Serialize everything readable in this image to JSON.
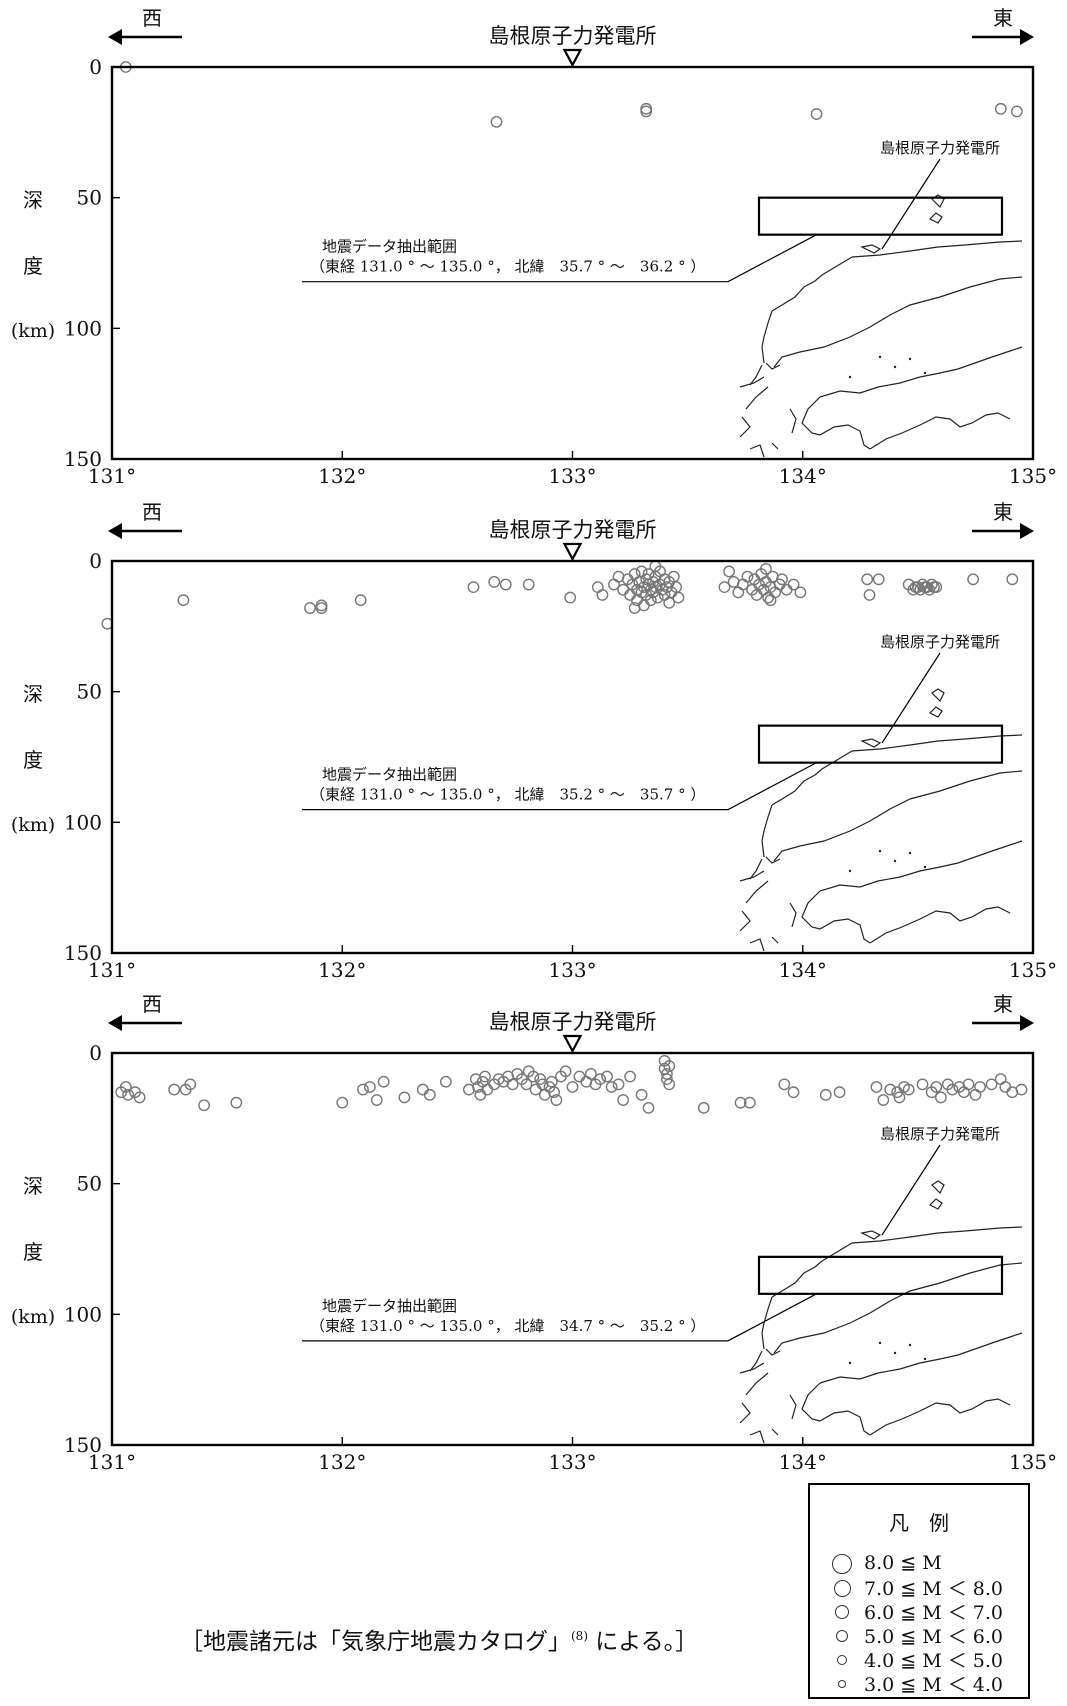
{
  "figure": {
    "direction_west": "西",
    "direction_east": "東",
    "site_label": "島根原子力発電所",
    "inset_site_label": "島根原子力発電所",
    "depth_label_chars": [
      "深",
      "度"
    ],
    "depth_unit": "(km)",
    "source_note_parts": [
      "［地震諸元は「気象庁地震カタログ」",
      "(8)",
      " による。］"
    ]
  },
  "legend": {
    "title": "凡　例",
    "items": [
      {
        "label": "8.0 ≦ M"
      },
      {
        "label": "7.0 ≦ M ＜ 8.0"
      },
      {
        "label": "6.0 ≦ M ＜ 7.0"
      },
      {
        "label": "5.0 ≦ M ＜ 6.0"
      },
      {
        "label": "4.0 ≦ M ＜ 5.0"
      },
      {
        "label": "3.0 ≦ M ＜ 4.0"
      }
    ]
  },
  "chart_data": [
    {
      "type": "scatter",
      "xlabel": "",
      "ylabel": "深度 (km)",
      "xlim": [
        131,
        135
      ],
      "ylim": [
        0,
        150
      ],
      "y_inverted": true,
      "x_ticks": [
        "131°",
        "132°",
        "133°",
        "134°",
        "135°"
      ],
      "y_ticks": [
        "0",
        "50",
        "100",
        "150"
      ],
      "site_longitude": 133.0,
      "annotation": [
        "地震データ抽出範囲",
        "（東経 131.0 ° ～ 135.0 °， 北緯　35.7 ° ～　36.2 ° ）"
      ],
      "series": [
        {
          "points": [
            [
              131.06,
              0
            ],
            [
              132.67,
              21
            ],
            [
              133.32,
              16
            ],
            [
              133.32,
              17
            ],
            [
              134.06,
              18
            ],
            [
              134.86,
              16
            ],
            [
              134.93,
              17
            ]
          ]
        }
      ]
    },
    {
      "type": "scatter",
      "xlabel": "",
      "ylabel": "深度 (km)",
      "xlim": [
        131,
        135
      ],
      "ylim": [
        0,
        150
      ],
      "y_inverted": true,
      "x_ticks": [
        "131°",
        "132°",
        "133°",
        "134°",
        "135°"
      ],
      "y_ticks": [
        "0",
        "50",
        "100",
        "150"
      ],
      "site_longitude": 133.0,
      "annotation": [
        "地震データ抽出範囲",
        "（東経 131.0 ° ～ 135.0 °， 北緯　35.2 ° ～　35.7 ° ）"
      ],
      "series": [
        {
          "points": [
            [
              130.98,
              24
            ],
            [
              131.31,
              15
            ],
            [
              131.86,
              18
            ],
            [
              131.91,
              17
            ],
            [
              131.91,
              18
            ],
            [
              132.08,
              15
            ],
            [
              132.57,
              10
            ],
            [
              132.66,
              8
            ],
            [
              132.71,
              9
            ],
            [
              132.81,
              9
            ],
            [
              132.99,
              14
            ],
            [
              133.11,
              10
            ],
            [
              133.13,
              13
            ],
            [
              133.18,
              9
            ],
            [
              133.2,
              6
            ],
            [
              133.22,
              11
            ],
            [
              133.24,
              7
            ],
            [
              133.25,
              13
            ],
            [
              133.26,
              9
            ],
            [
              133.27,
              5
            ],
            [
              133.28,
              11
            ],
            [
              133.28,
              15
            ],
            [
              133.29,
              8
            ],
            [
              133.3,
              12
            ],
            [
              133.3,
              4
            ],
            [
              133.31,
              10
            ],
            [
              133.31,
              17
            ],
            [
              133.32,
              7
            ],
            [
              133.32,
              13
            ],
            [
              133.33,
              9
            ],
            [
              133.33,
              5
            ],
            [
              133.34,
              11
            ],
            [
              133.34,
              15
            ],
            [
              133.35,
              8
            ],
            [
              133.35,
              12
            ],
            [
              133.36,
              6
            ],
            [
              133.36,
              10
            ],
            [
              133.37,
              14
            ],
            [
              133.38,
              9
            ],
            [
              133.38,
              4
            ],
            [
              133.39,
              11
            ],
            [
              133.4,
              7
            ],
            [
              133.4,
              13
            ],
            [
              133.41,
              10
            ],
            [
              133.42,
              8
            ],
            [
              133.42,
              16
            ],
            [
              133.43,
              12
            ],
            [
              133.44,
              6
            ],
            [
              133.45,
              10
            ],
            [
              133.46,
              14
            ],
            [
              133.27,
              18
            ],
            [
              133.36,
              2
            ],
            [
              133.66,
              10
            ],
            [
              133.68,
              4
            ],
            [
              133.7,
              8
            ],
            [
              133.72,
              12
            ],
            [
              133.74,
              9
            ],
            [
              133.76,
              6
            ],
            [
              133.78,
              11
            ],
            [
              133.79,
              7
            ],
            [
              133.8,
              13
            ],
            [
              133.81,
              9
            ],
            [
              133.82,
              5
            ],
            [
              133.83,
              11
            ],
            [
              133.84,
              8
            ],
            [
              133.85,
              14
            ],
            [
              133.86,
              10
            ],
            [
              133.87,
              6
            ],
            [
              133.88,
              12
            ],
            [
              133.9,
              9
            ],
            [
              133.91,
              7
            ],
            [
              133.93,
              11
            ],
            [
              133.96,
              9
            ],
            [
              133.99,
              12
            ],
            [
              133.84,
              3
            ],
            [
              133.86,
              15
            ],
            [
              134.28,
              7
            ],
            [
              134.29,
              13
            ],
            [
              134.33,
              7
            ],
            [
              134.46,
              9
            ],
            [
              134.48,
              11
            ],
            [
              134.49,
              10
            ],
            [
              134.5,
              10
            ],
            [
              134.51,
              11
            ],
            [
              134.52,
              9
            ],
            [
              134.53,
              10
            ],
            [
              134.54,
              10
            ],
            [
              134.55,
              11
            ],
            [
              134.56,
              9
            ],
            [
              134.57,
              10
            ],
            [
              134.58,
              10
            ],
            [
              134.74,
              7
            ],
            [
              134.91,
              7
            ]
          ]
        }
      ]
    },
    {
      "type": "scatter",
      "xlabel": "",
      "ylabel": "深度 (km)",
      "xlim": [
        131,
        135
      ],
      "ylim": [
        0,
        150
      ],
      "y_inverted": true,
      "x_ticks": [
        "131°",
        "132°",
        "133°",
        "134°",
        "135°"
      ],
      "y_ticks": [
        "0",
        "50",
        "100",
        "150"
      ],
      "site_longitude": 133.0,
      "annotation": [
        "地震データ抽出範囲",
        "（東経 131.0 ° ～ 135.0 °， 北緯　34.7 ° ～　35.2 ° ）"
      ],
      "series": [
        {
          "points": [
            [
              131.04,
              15
            ],
            [
              131.06,
              13
            ],
            [
              131.07,
              16
            ],
            [
              131.1,
              15
            ],
            [
              131.12,
              17
            ],
            [
              131.27,
              14
            ],
            [
              131.32,
              14
            ],
            [
              131.34,
              12
            ],
            [
              131.4,
              20
            ],
            [
              131.54,
              19
            ],
            [
              132.0,
              19
            ],
            [
              132.09,
              14
            ],
            [
              132.12,
              13
            ],
            [
              132.15,
              18
            ],
            [
              132.18,
              11
            ],
            [
              132.27,
              17
            ],
            [
              132.35,
              14
            ],
            [
              132.38,
              16
            ],
            [
              132.45,
              11
            ],
            [
              132.55,
              14
            ],
            [
              132.58,
              10
            ],
            [
              132.59,
              13
            ],
            [
              132.6,
              16
            ],
            [
              132.61,
              11
            ],
            [
              132.62,
              9
            ],
            [
              132.63,
              14
            ],
            [
              132.66,
              12
            ],
            [
              132.68,
              10
            ],
            [
              132.7,
              11
            ],
            [
              132.72,
              9
            ],
            [
              132.74,
              12
            ],
            [
              132.76,
              8
            ],
            [
              132.78,
              10
            ],
            [
              132.8,
              12
            ],
            [
              132.81,
              7
            ],
            [
              132.83,
              9
            ],
            [
              132.84,
              14
            ],
            [
              132.86,
              10
            ],
            [
              132.87,
              12
            ],
            [
              132.88,
              16
            ],
            [
              132.9,
              13
            ],
            [
              132.91,
              11
            ],
            [
              132.92,
              15
            ],
            [
              132.93,
              18
            ],
            [
              132.95,
              9
            ],
            [
              132.97,
              7
            ],
            [
              133.0,
              13
            ],
            [
              133.03,
              9
            ],
            [
              133.06,
              11
            ],
            [
              133.08,
              8
            ],
            [
              133.1,
              12
            ],
            [
              133.12,
              10
            ],
            [
              133.15,
              9
            ],
            [
              133.17,
              13
            ],
            [
              133.2,
              12
            ],
            [
              133.22,
              18
            ],
            [
              133.25,
              9
            ],
            [
              133.3,
              16
            ],
            [
              133.33,
              21
            ],
            [
              133.4,
              3
            ],
            [
              133.4,
              6
            ],
            [
              133.41,
              8
            ],
            [
              133.41,
              10
            ],
            [
              133.42,
              5
            ],
            [
              133.42,
              12
            ],
            [
              133.57,
              21
            ],
            [
              133.73,
              19
            ],
            [
              133.77,
              19
            ],
            [
              133.92,
              12
            ],
            [
              133.96,
              15
            ],
            [
              134.1,
              16
            ],
            [
              134.16,
              15
            ],
            [
              134.32,
              13
            ],
            [
              134.35,
              18
            ],
            [
              134.38,
              14
            ],
            [
              134.41,
              15
            ],
            [
              134.42,
              17
            ],
            [
              134.44,
              13
            ],
            [
              134.46,
              14
            ],
            [
              134.52,
              12
            ],
            [
              134.56,
              15
            ],
            [
              134.58,
              13
            ],
            [
              134.6,
              17
            ],
            [
              134.63,
              12
            ],
            [
              134.65,
              14
            ],
            [
              134.68,
              13
            ],
            [
              134.7,
              15
            ],
            [
              134.72,
              12
            ],
            [
              134.75,
              16
            ],
            [
              134.77,
              13
            ],
            [
              134.82,
              12
            ],
            [
              134.86,
              10
            ],
            [
              134.88,
              13
            ],
            [
              134.91,
              15
            ],
            [
              134.95,
              14
            ]
          ]
        }
      ]
    }
  ]
}
